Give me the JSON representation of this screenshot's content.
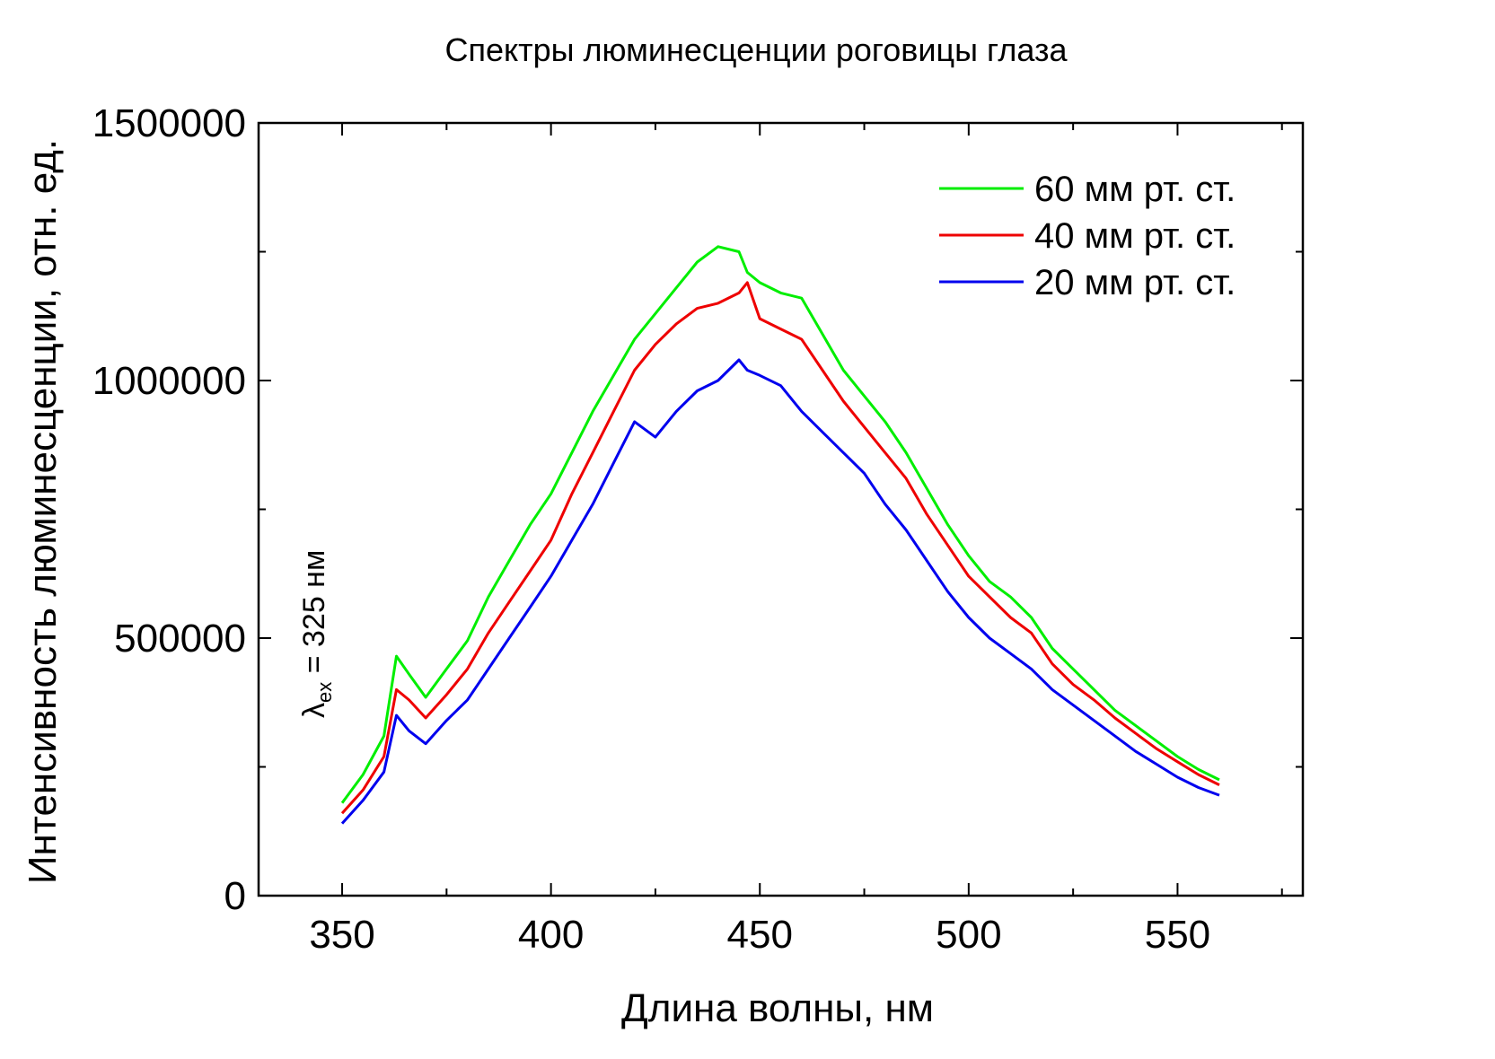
{
  "chart_data": {
    "type": "line",
    "title": "Спектры люминесценции роговицы глаза",
    "xlabel": "Длина волны, нм",
    "ylabel": "Интенсивность люминесценции, отн. ед.",
    "xlim": [
      330,
      580
    ],
    "ylim": [
      0,
      1500000
    ],
    "xticks": [
      350,
      400,
      450,
      500,
      550
    ],
    "yticks": [
      0,
      500000,
      1000000,
      1500000
    ],
    "grid": false,
    "legend_position": "top-right",
    "annotation": {
      "symbol": "λ",
      "subscript": "ex",
      "text": " = 325 нм"
    },
    "x": [
      350,
      355,
      360,
      363,
      366,
      370,
      375,
      380,
      385,
      390,
      395,
      400,
      405,
      410,
      415,
      420,
      425,
      430,
      435,
      440,
      445,
      447,
      450,
      455,
      460,
      465,
      470,
      475,
      480,
      485,
      490,
      495,
      500,
      505,
      510,
      515,
      520,
      525,
      530,
      535,
      540,
      545,
      550,
      555,
      560
    ],
    "series": [
      {
        "name": "60 мм рт. ст.",
        "color": "#00ee00",
        "values": [
          180000,
          235000,
          310000,
          465000,
          430000,
          385000,
          440000,
          495000,
          580000,
          650000,
          720000,
          780000,
          860000,
          940000,
          1010000,
          1080000,
          1130000,
          1180000,
          1230000,
          1260000,
          1250000,
          1210000,
          1190000,
          1170000,
          1160000,
          1090000,
          1020000,
          970000,
          920000,
          860000,
          790000,
          720000,
          660000,
          610000,
          580000,
          540000,
          480000,
          440000,
          400000,
          360000,
          330000,
          300000,
          270000,
          245000,
          225000
        ]
      },
      {
        "name": "40 мм рт. ст.",
        "color": "#ee0000",
        "values": [
          160000,
          205000,
          270000,
          400000,
          380000,
          345000,
          390000,
          440000,
          510000,
          570000,
          630000,
          690000,
          780000,
          860000,
          940000,
          1020000,
          1070000,
          1110000,
          1140000,
          1150000,
          1170000,
          1190000,
          1120000,
          1100000,
          1080000,
          1020000,
          960000,
          910000,
          860000,
          810000,
          740000,
          680000,
          620000,
          580000,
          540000,
          510000,
          450000,
          410000,
          380000,
          345000,
          315000,
          285000,
          260000,
          235000,
          215000
        ]
      },
      {
        "name": "20 мм рт. ст.",
        "color": "#0000ee",
        "values": [
          140000,
          185000,
          240000,
          350000,
          320000,
          295000,
          340000,
          380000,
          440000,
          500000,
          560000,
          620000,
          690000,
          760000,
          840000,
          920000,
          890000,
          940000,
          980000,
          1000000,
          1040000,
          1020000,
          1010000,
          990000,
          940000,
          900000,
          860000,
          820000,
          760000,
          710000,
          650000,
          590000,
          540000,
          500000,
          470000,
          440000,
          400000,
          370000,
          340000,
          310000,
          280000,
          255000,
          230000,
          210000,
          195000
        ]
      }
    ]
  }
}
